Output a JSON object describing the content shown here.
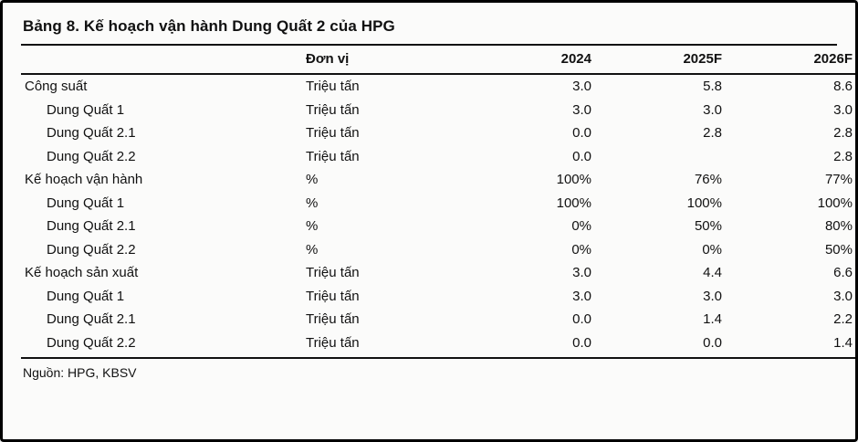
{
  "title": "Bảng 8. Kế hoạch vận hành Dung Quất 2 của HPG",
  "table": {
    "headers": {
      "label": "",
      "unit": "Đơn vị",
      "y2024": "2024",
      "y2025f": "2025F",
      "y2026f": "2026F"
    },
    "rows": [
      {
        "label": "Công suất",
        "indent": false,
        "unit": "Triệu tấn",
        "v2024": "3.0",
        "v2025": "5.8",
        "v2026": "8.6"
      },
      {
        "label": "Dung Quất 1",
        "indent": true,
        "unit": "Triệu tấn",
        "v2024": "3.0",
        "v2025": "3.0",
        "v2026": "3.0"
      },
      {
        "label": "Dung Quất 2.1",
        "indent": true,
        "unit": "Triệu tấn",
        "v2024": "0.0",
        "v2025": "2.8",
        "v2026": "2.8"
      },
      {
        "label": "Dung Quất 2.2",
        "indent": true,
        "unit": "Triệu tấn",
        "v2024": "0.0",
        "v2025": "",
        "v2026": "2.8"
      },
      {
        "label": "Kế hoạch vận hành",
        "indent": false,
        "unit": "%",
        "v2024": "100%",
        "v2025": "76%",
        "v2026": "77%"
      },
      {
        "label": "Dung Quất 1",
        "indent": true,
        "unit": "%",
        "v2024": "100%",
        "v2025": "100%",
        "v2026": "100%"
      },
      {
        "label": "Dung Quất 2.1",
        "indent": true,
        "unit": "%",
        "v2024": "0%",
        "v2025": "50%",
        "v2026": "80%"
      },
      {
        "label": "Dung Quất 2.2",
        "indent": true,
        "unit": "%",
        "v2024": "0%",
        "v2025": "0%",
        "v2026": "50%"
      },
      {
        "label": "Kế hoạch sản xuất",
        "indent": false,
        "unit": "Triệu tấn",
        "v2024": "3.0",
        "v2025": "4.4",
        "v2026": "6.6"
      },
      {
        "label": "Dung Quất 1",
        "indent": true,
        "unit": "Triệu tấn",
        "v2024": "3.0",
        "v2025": "3.0",
        "v2026": "3.0"
      },
      {
        "label": "Dung Quất 2.1",
        "indent": true,
        "unit": "Triệu tấn",
        "v2024": "0.0",
        "v2025": "1.4",
        "v2026": "2.2"
      },
      {
        "label": "Dung Quất 2.2",
        "indent": true,
        "unit": "Triệu tấn",
        "v2024": "0.0",
        "v2025": "0.0",
        "v2026": "1.4"
      }
    ]
  },
  "source": "Nguồn: HPG, KBSV"
}
